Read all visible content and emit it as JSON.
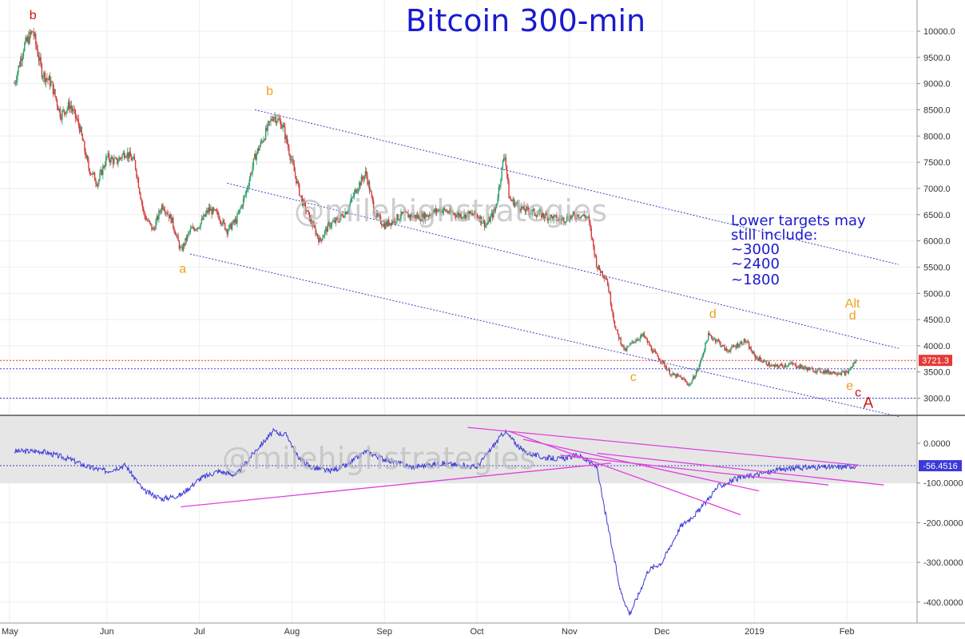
{
  "colors": {
    "title": "#1a1ad0",
    "note": "#1a1ad0",
    "wave_orange": "#f0a020",
    "wave_red": "#d01010",
    "candle_up": "#2e9e6a",
    "candle_down": "#d23c3c",
    "channel": "#4040c8",
    "trendline": "#e040e0",
    "indicator": "#3a3ad8",
    "price_tag": "#e53935",
    "indicator_tag": "#3a3ad8"
  },
  "watermark": "@milehighstrategies",
  "chart_data": [
    {
      "type": "candlestick",
      "title": "Bitcoin 300-min",
      "x_tick_labels": [
        "May",
        "Jun",
        "Jul",
        "Aug",
        "Sep",
        "Oct",
        "Nov",
        "Dec",
        "2019",
        "Feb"
      ],
      "y_tick_labels": [
        "10000.0",
        "9500.0",
        "9000.0",
        "8500.0",
        "8000.0",
        "7500.0",
        "7000.0",
        "6500.0",
        "6000.0",
        "5500.0",
        "5000.0",
        "4500.0",
        "4000.0",
        "3500.0",
        "3000.0"
      ],
      "y_range": [
        2650,
        10500
      ],
      "last_price": 3721.3,
      "last_price_label": "3721.3",
      "horizontal_lines": [
        3721.3,
        3560,
        3000
      ],
      "price_path": [
        [
          0,
          9000
        ],
        [
          0.1,
          9700
        ],
        [
          0.2,
          10000
        ],
        [
          0.3,
          9200
        ],
        [
          0.4,
          9000
        ],
        [
          0.5,
          8400
        ],
        [
          0.6,
          8600
        ],
        [
          0.7,
          8200
        ],
        [
          0.8,
          7400
        ],
        [
          0.9,
          7100
        ],
        [
          1.0,
          7600
        ],
        [
          1.1,
          7500
        ],
        [
          1.2,
          7700
        ],
        [
          1.3,
          7500
        ],
        [
          1.4,
          6500
        ],
        [
          1.5,
          6200
        ],
        [
          1.6,
          6700
        ],
        [
          1.7,
          6400
        ],
        [
          1.8,
          5800
        ],
        [
          1.9,
          6200
        ],
        [
          2.0,
          6300
        ],
        [
          2.1,
          6600
        ],
        [
          2.2,
          6500
        ],
        [
          2.3,
          6200
        ],
        [
          2.4,
          6400
        ],
        [
          2.5,
          6900
        ],
        [
          2.6,
          7600
        ],
        [
          2.7,
          8000
        ],
        [
          2.8,
          8400
        ],
        [
          2.9,
          8200
        ],
        [
          3.0,
          7500
        ],
        [
          3.1,
          6800
        ],
        [
          3.2,
          6400
        ],
        [
          3.3,
          6000
        ],
        [
          3.4,
          6300
        ],
        [
          3.5,
          6400
        ],
        [
          3.6,
          6600
        ],
        [
          3.7,
          7000
        ],
        [
          3.8,
          7300
        ],
        [
          3.9,
          6500
        ],
        [
          4.0,
          6300
        ],
        [
          4.2,
          6500
        ],
        [
          4.4,
          6450
        ],
        [
          4.6,
          6600
        ],
        [
          4.8,
          6500
        ],
        [
          5.0,
          6500
        ],
        [
          5.1,
          6300
        ],
        [
          5.2,
          6600
        ],
        [
          5.3,
          7700
        ],
        [
          5.35,
          6800
        ],
        [
          5.5,
          6600
        ],
        [
          5.7,
          6500
        ],
        [
          5.9,
          6400
        ],
        [
          6.1,
          6500
        ],
        [
          6.2,
          6450
        ],
        [
          6.3,
          5500
        ],
        [
          6.4,
          5300
        ],
        [
          6.5,
          4300
        ],
        [
          6.6,
          3900
        ],
        [
          6.7,
          4100
        ],
        [
          6.8,
          4200
        ],
        [
          6.9,
          3900
        ],
        [
          7.0,
          3700
        ],
        [
          7.1,
          3450
        ],
        [
          7.2,
          3400
        ],
        [
          7.3,
          3250
        ],
        [
          7.4,
          3600
        ],
        [
          7.5,
          4200
        ],
        [
          7.6,
          4100
        ],
        [
          7.7,
          3900
        ],
        [
          7.8,
          4000
        ],
        [
          7.9,
          4100
        ],
        [
          8.0,
          3800
        ],
        [
          8.2,
          3600
        ],
        [
          8.4,
          3650
        ],
        [
          8.6,
          3550
        ],
        [
          8.8,
          3500
        ],
        [
          9.0,
          3480
        ],
        [
          9.1,
          3721
        ]
      ],
      "channel_lines": [
        {
          "from": [
            2.6,
            8500
          ],
          "to": [
            9.56,
            5550
          ]
        },
        {
          "from": [
            2.3,
            7100
          ],
          "to": [
            9.56,
            3950
          ]
        },
        {
          "from": [
            1.9,
            5750
          ],
          "to": [
            9.56,
            2650
          ]
        }
      ],
      "annotations": [
        {
          "text": "b",
          "x": 0.2,
          "price": 10230,
          "color": "red"
        },
        {
          "text": "b",
          "x": 2.76,
          "price": 8780,
          "color": "orange"
        },
        {
          "text": "a",
          "x": 1.82,
          "price": 5390,
          "color": "orange"
        },
        {
          "text": "c",
          "x": 6.69,
          "price": 3330,
          "color": "orange"
        },
        {
          "text": "d",
          "x": 7.55,
          "price": 4530,
          "color": "orange"
        },
        {
          "text": "Alt",
          "x": 9.06,
          "price": 4730,
          "color": "orange"
        },
        {
          "text": "d",
          "x": 9.06,
          "price": 4500,
          "color": "orange"
        },
        {
          "text": "e",
          "x": 9.03,
          "price": 3160,
          "color": "orange"
        },
        {
          "text": "c",
          "x": 9.12,
          "price": 3030,
          "color": "red"
        },
        {
          "text": "A",
          "x": 9.23,
          "price": 2820,
          "color": "red"
        }
      ],
      "note_lines": [
        "Lower targets may",
        "still include:",
        "~3000",
        "~2400",
        "~1800"
      ]
    },
    {
      "type": "line",
      "title": "",
      "y_tick_labels": [
        "0.0000",
        "-100.0000",
        "-200.0000",
        "-300.0000",
        "-400.0000"
      ],
      "y_range": [
        -450,
        50
      ],
      "band": [
        0,
        -100
      ],
      "last_value": -56.4516,
      "last_value_label": "-56.4516",
      "values": [
        [
          0,
          -20
        ],
        [
          0.3,
          -20
        ],
        [
          0.6,
          -40
        ],
        [
          0.8,
          -60
        ],
        [
          1.0,
          -70
        ],
        [
          1.2,
          -55
        ],
        [
          1.4,
          -120
        ],
        [
          1.6,
          -140
        ],
        [
          1.8,
          -130
        ],
        [
          2.0,
          -90
        ],
        [
          2.2,
          -70
        ],
        [
          2.4,
          -80
        ],
        [
          2.6,
          -20
        ],
        [
          2.8,
          30
        ],
        [
          2.95,
          20
        ],
        [
          3.05,
          -30
        ],
        [
          3.2,
          -60
        ],
        [
          3.4,
          -70
        ],
        [
          3.6,
          -55
        ],
        [
          3.8,
          -20
        ],
        [
          4.0,
          -40
        ],
        [
          4.3,
          -60
        ],
        [
          4.6,
          -50
        ],
        [
          5.0,
          -60
        ],
        [
          5.3,
          30
        ],
        [
          5.5,
          -20
        ],
        [
          5.7,
          -35
        ],
        [
          5.9,
          -40
        ],
        [
          6.1,
          -30
        ],
        [
          6.3,
          -60
        ],
        [
          6.35,
          -130
        ],
        [
          6.45,
          -250
        ],
        [
          6.55,
          -370
        ],
        [
          6.65,
          -430
        ],
        [
          6.75,
          -380
        ],
        [
          6.85,
          -320
        ],
        [
          7.0,
          -300
        ],
        [
          7.2,
          -210
        ],
        [
          7.4,
          -170
        ],
        [
          7.6,
          -110
        ],
        [
          7.8,
          -90
        ],
        [
          8.0,
          -80
        ],
        [
          8.3,
          -65
        ],
        [
          8.6,
          -60
        ],
        [
          8.9,
          -60
        ],
        [
          9.1,
          -56.45
        ]
      ],
      "trendlines": [
        {
          "from": [
            1.8,
            -160
          ],
          "to": [
            6.45,
            -50
          ]
        },
        {
          "from": [
            4.9,
            40
          ],
          "to": [
            9.13,
            -55
          ]
        },
        {
          "from": [
            5.35,
            30
          ],
          "to": [
            7.85,
            -180
          ]
        },
        {
          "from": [
            5.5,
            10
          ],
          "to": [
            8.05,
            -120
          ]
        },
        {
          "from": [
            5.9,
            -30
          ],
          "to": [
            8.8,
            -105
          ]
        },
        {
          "from": [
            6.3,
            -25
          ],
          "to": [
            9.4,
            -105
          ]
        }
      ]
    }
  ]
}
